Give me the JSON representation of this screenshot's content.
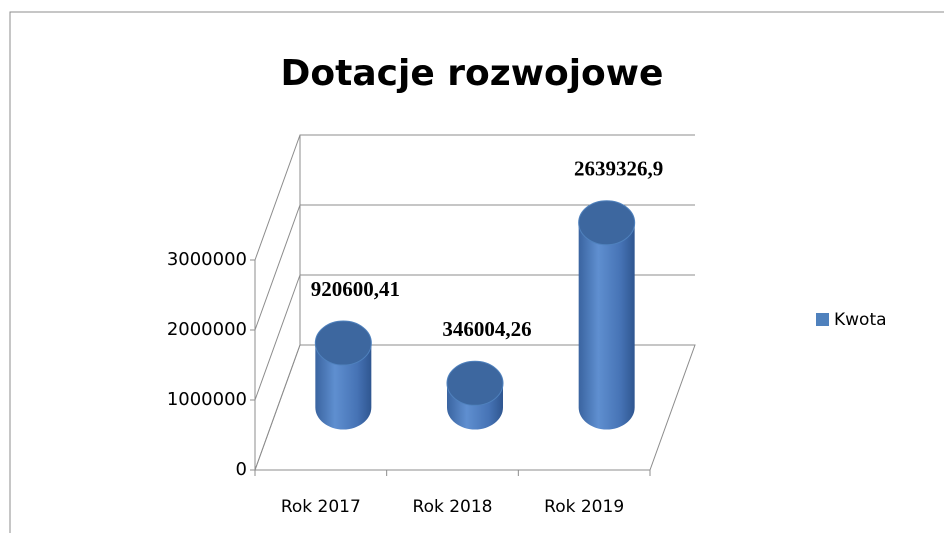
{
  "chart_data": {
    "type": "bar3d-cylinder",
    "title": "Dotacje rozwojowe",
    "categories": [
      "Rok 2017",
      "Rok 2018",
      "Rok 2019"
    ],
    "series": [
      {
        "name": "Kwota",
        "color": "#4f81bd",
        "values": [
          920600.41,
          346004.26,
          2639326.9
        ],
        "value_labels": [
          "920600,41",
          "346004,26",
          "2639326,9"
        ]
      }
    ],
    "ylim": [
      0,
      3000000
    ],
    "yticks": [
      0,
      1000000,
      2000000,
      3000000
    ],
    "grid": true,
    "legend": "right"
  }
}
